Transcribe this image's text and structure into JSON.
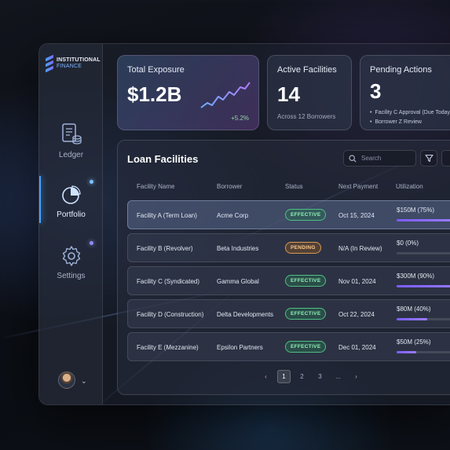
{
  "brand": {
    "line1": "INSTITUTIONAL",
    "line2": "FINANCE"
  },
  "sidebar": {
    "items": [
      {
        "label": "Ledger",
        "icon": "ledger-icon"
      },
      {
        "label": "Portfolio",
        "icon": "pie-chart-icon",
        "active": true
      },
      {
        "label": "Settings",
        "icon": "gear-icon"
      }
    ]
  },
  "cards": {
    "exposure": {
      "title": "Total Exposure",
      "value": "$1.2B",
      "change": "+5.2%"
    },
    "facilities": {
      "title": "Active Facilities",
      "value": "14",
      "note": "Across 12 Borrowers"
    },
    "pending": {
      "title": "Pending Actions",
      "value": "3",
      "items": [
        "Facility C Approval (Due Today)",
        "Borrower Z Review"
      ]
    }
  },
  "table": {
    "title": "Loan Facilities",
    "search_placeholder": "Search",
    "columns": [
      "Facility Name",
      "Borrower",
      "Status",
      "Next Payment",
      "Utilization"
    ],
    "rows": [
      {
        "name": "Facility A (Term Loan)",
        "borrower": "Acme Corp",
        "status": "EFFECTIVE",
        "next": "Oct 15, 2024",
        "util": "$150M (75%)",
        "util_pct": 75
      },
      {
        "name": "Facility B (Revolver)",
        "borrower": "Beta Industries",
        "status": "PENDING",
        "next": "N/A (In Review)",
        "util": "$0 (0%)",
        "util_pct": 0
      },
      {
        "name": "Facility C (Syndicated)",
        "borrower": "Gamma Global",
        "status": "EFFECTIVE",
        "next": "Nov 01, 2024",
        "util": "$300M (90%)",
        "util_pct": 90
      },
      {
        "name": "Facility D (Construction)",
        "borrower": "Delta Developments",
        "status": "EFFECTIVE",
        "next": "Oct 22, 2024",
        "util": "$80M (40%)",
        "util_pct": 40
      },
      {
        "name": "Facility E (Mezzanine)",
        "borrower": "Epsilon Partners",
        "status": "EFFECTIVE",
        "next": "Dec 01, 2024",
        "util": "$50M (25%)",
        "util_pct": 25
      }
    ]
  },
  "pagination": {
    "prev": "‹",
    "pages": [
      "1",
      "2",
      "3",
      "..."
    ],
    "next": "›",
    "current": "1"
  },
  "colors": {
    "accent": "#4aa3ff",
    "effective": "#4fbf85",
    "pending": "#d99a52",
    "utilization": "#7b5cff"
  }
}
